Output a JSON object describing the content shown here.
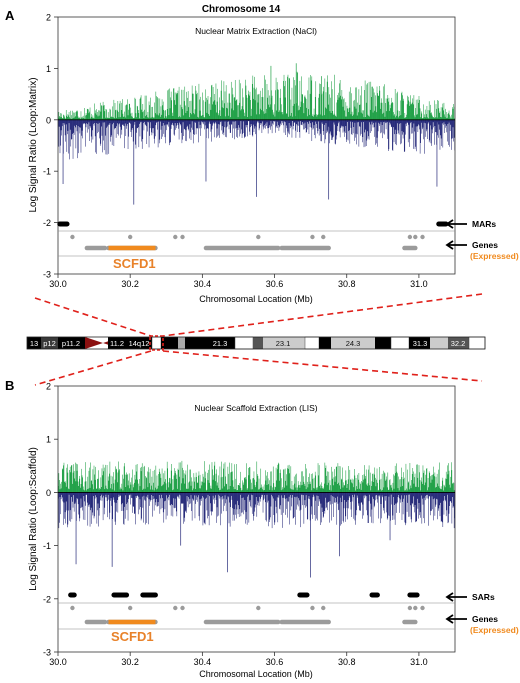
{
  "figure": {
    "title": "Chromosome 14"
  },
  "panels": [
    {
      "letter": "A",
      "ylabel": "Log Signal Ratio (Loop:Matrix)",
      "xlabel": "Chromosomal Location (Mb)",
      "subtitle": "Nuclear Matrix Extraction (NaCl)",
      "seed": 17,
      "seedB": 5,
      "env": [
        [
          30.0,
          0.12
        ],
        [
          30.2,
          0.28
        ],
        [
          30.35,
          0.42
        ],
        [
          30.55,
          0.55
        ],
        [
          30.7,
          0.6
        ],
        [
          30.9,
          0.45
        ],
        [
          31.0,
          0.3
        ],
        [
          31.1,
          0.2
        ]
      ],
      "neg_env": [
        [
          30.0,
          -0.55
        ],
        [
          30.3,
          -0.35
        ],
        [
          30.6,
          -0.2
        ],
        [
          30.8,
          -0.35
        ],
        [
          31.1,
          -0.5
        ]
      ],
      "neg_spikes": [
        [
          30.014,
          -1.25
        ],
        [
          30.21,
          -1.65
        ],
        [
          30.41,
          -1.2
        ],
        [
          30.55,
          -1.5
        ],
        [
          30.75,
          -1.55
        ],
        [
          31.05,
          -1.3
        ]
      ],
      "pos_spikes": [
        [
          30.59,
          1.05
        ],
        [
          30.66,
          1.1
        ],
        [
          30.73,
          0.85
        ]
      ],
      "markers": {
        "label": "MARs",
        "segments": [
          [
            30.005,
            30.025
          ],
          [
            31.055,
            31.075
          ]
        ]
      },
      "genes": {
        "label": "Genes",
        "sub_label": "(Expressed)",
        "highlight_name": "SCFD1"
      }
    },
    {
      "letter": "B",
      "ylabel": "Log Signal Ratio (Loop:Scaffold)",
      "xlabel": "Chromosomal Location (Mb)",
      "subtitle": "Nuclear Scaffold Extraction (LIS)",
      "seed": 93,
      "seedB": 41,
      "env": [
        [
          30.0,
          0.35
        ],
        [
          30.3,
          0.38
        ],
        [
          30.6,
          0.36
        ],
        [
          30.9,
          0.34
        ],
        [
          31.1,
          0.36
        ]
      ],
      "neg_env": [
        [
          30.0,
          -0.45
        ],
        [
          30.3,
          -0.4
        ],
        [
          30.6,
          -0.45
        ],
        [
          30.9,
          -0.4
        ],
        [
          31.1,
          -0.45
        ]
      ],
      "neg_spikes": [
        [
          30.05,
          -1.35
        ],
        [
          30.15,
          -1.4
        ],
        [
          30.34,
          -1.0
        ],
        [
          30.47,
          -1.5
        ],
        [
          30.7,
          -1.6
        ],
        [
          30.78,
          -1.2
        ],
        [
          30.92,
          -0.9
        ]
      ],
      "pos_spikes": [],
      "markers": {
        "label": "SARs",
        "segments": [
          [
            30.035,
            30.045
          ],
          [
            30.155,
            30.19
          ],
          [
            30.235,
            30.27
          ],
          [
            30.67,
            30.69
          ],
          [
            30.87,
            30.885
          ],
          [
            30.975,
            30.995
          ]
        ]
      },
      "genes": {
        "label": "Genes",
        "sub_label": "(Expressed)",
        "highlight_name": "SCFD1"
      }
    }
  ],
  "ideogram": {
    "bands": [
      {
        "label": "13"
      },
      {
        "label": "p12"
      },
      {
        "label": "p11.2"
      },
      {
        "label": "11.2"
      },
      {
        "label": "14q12"
      },
      {
        "label": ""
      },
      {
        "label": "21.3"
      },
      {
        "label": "23.1"
      },
      {
        "label": "24.3"
      },
      {
        "label": "31.3"
      },
      {
        "label": "32.2"
      }
    ]
  },
  "colors": {
    "positive": "#1fa046",
    "negative": "#262a7a",
    "gene": "#9b9b9b",
    "expressed": "#f08a1e",
    "highlight": "#e8822a",
    "zoom": "#e0211b"
  },
  "chart_data": [
    {
      "type": "bar",
      "panel": "A",
      "title": "Nuclear Matrix Extraction (NaCl)",
      "xlabel": "Chromosomal Location (Mb)",
      "ylabel": "Log Signal Ratio (Loop:Matrix)",
      "xlim": [
        30.0,
        31.1
      ],
      "ylim": [
        -3,
        2
      ],
      "xticks": [
        "30.0",
        "30.2",
        "30.4",
        "30.6",
        "30.8",
        "31.0"
      ],
      "yticks": [
        "-3",
        "-2",
        "-1",
        "0",
        "1",
        "2"
      ],
      "series": [
        {
          "name": "MARs",
          "segments": [
            [
              30.005,
              30.025
            ],
            [
              31.055,
              31.075
            ]
          ]
        },
        {
          "name": "Genes",
          "segments": [
            [
              30.08,
              30.13
            ],
            [
              30.14,
              30.27
            ],
            [
              30.41,
              30.61
            ],
            [
              30.62,
              30.75
            ],
            [
              30.96,
              30.99
            ]
          ]
        },
        {
          "name": "Genes (Expressed)",
          "segments": [
            [
              30.14,
              30.27
            ]
          ]
        }
      ],
      "gene_dots": [
        30.04,
        30.2,
        30.325,
        30.345,
        30.555,
        30.705,
        30.735,
        30.975,
        30.99,
        31.01
      ]
    },
    {
      "type": "bar",
      "panel": "B",
      "title": "Nuclear Scaffold Extraction (LIS)",
      "xlabel": "Chromosomal Location (Mb)",
      "ylabel": "Log Signal Ratio (Loop:Scaffold)",
      "xlim": [
        30.0,
        31.1
      ],
      "ylim": [
        -3,
        2
      ],
      "xticks": [
        "30.0",
        "30.2",
        "30.4",
        "30.6",
        "30.8",
        "31.0"
      ],
      "yticks": [
        "-3",
        "-2",
        "-1",
        "0",
        "1",
        "2"
      ],
      "series": [
        {
          "name": "SARs",
          "segments": [
            [
              30.035,
              30.045
            ],
            [
              30.155,
              30.19
            ],
            [
              30.235,
              30.27
            ],
            [
              30.67,
              30.69
            ],
            [
              30.87,
              30.885
            ],
            [
              30.975,
              30.995
            ]
          ]
        },
        {
          "name": "Genes",
          "segments": [
            [
              30.08,
              30.13
            ],
            [
              30.14,
              30.27
            ],
            [
              30.41,
              30.61
            ],
            [
              30.62,
              30.75
            ],
            [
              30.96,
              30.99
            ]
          ]
        },
        {
          "name": "Genes (Expressed)",
          "segments": [
            [
              30.14,
              30.27
            ]
          ]
        }
      ],
      "gene_dots": [
        30.04,
        30.2,
        30.325,
        30.345,
        30.555,
        30.705,
        30.735,
        30.975,
        30.99,
        31.01
      ]
    }
  ]
}
